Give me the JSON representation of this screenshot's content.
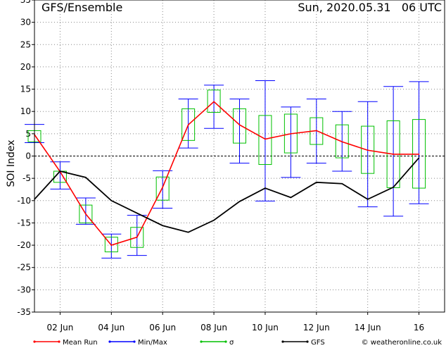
{
  "chart_data": {
    "type": "line",
    "title": "GFS/Ensemble",
    "subtitle": "Sun, 2020.05.31   06 UTC",
    "ylabel": "SOI Index",
    "xlabel": "",
    "ylim": [
      -35,
      35
    ],
    "yticks": [
      -35,
      -30,
      -25,
      -20,
      -15,
      -10,
      -5,
      0,
      5,
      10,
      15,
      20,
      25,
      30,
      35
    ],
    "ytick_labels": [
      "-35",
      "-30",
      "-25",
      "-20",
      "-15",
      "-10",
      "-5",
      "0",
      "5",
      "10",
      "15",
      "20",
      "25",
      "30",
      "35"
    ],
    "xlim": [
      1,
      17
    ],
    "xticks": [
      2,
      4,
      6,
      8,
      10,
      12,
      14,
      16
    ],
    "xtick_labels": [
      "02 Jun",
      "04 Jun",
      "06 Jun",
      "08 Jun",
      "10 Jun",
      "12 Jun",
      "14 Jun",
      "16"
    ],
    "grid": true,
    "x": [
      1,
      2,
      3,
      4,
      5,
      6,
      7,
      8,
      9,
      10,
      11,
      12,
      13,
      14,
      15,
      16
    ],
    "series": [
      {
        "name": "Mean Run",
        "color": "#ff0000",
        "values": [
          4.8,
          -3.5,
          -13,
          -20,
          -18.2,
          -7,
          7,
          12.2,
          7,
          3.8,
          5,
          5.7,
          3.2,
          1.3,
          0.4,
          0.4
        ]
      },
      {
        "name": "GFS",
        "color": "#000000",
        "values": [
          -9.7,
          -3.4,
          -4.8,
          -10,
          -12.8,
          -15.6,
          -17.1,
          -14.4,
          -10.2,
          -7.2,
          -9.3,
          -5.9,
          -6.2,
          -9.7,
          -7,
          -0.4
        ]
      }
    ],
    "minmax": {
      "name": "Min/Max",
      "color": "#0000ff",
      "min": [
        3,
        -7.4,
        -15.3,
        -22.9,
        -22.3,
        -11.7,
        1.8,
        6.2,
        -1.6,
        -10.1,
        -4.8,
        -1.6,
        -3.4,
        -11.4,
        -13.5,
        -10.7
      ],
      "max": [
        7.1,
        -1.3,
        -9.4,
        -17.5,
        -13.3,
        -3.3,
        12.8,
        15.9,
        12.8,
        16.9,
        11,
        12.8,
        10,
        12.2,
        15.6,
        16.7
      ]
    },
    "sigma": {
      "name": "σ",
      "color": "#00c000",
      "low": [
        3.2,
        -5.9,
        -15,
        -21.5,
        -20.5,
        -9.9,
        3.5,
        9.8,
        2.9,
        -1.9,
        0.7,
        2.6,
        -0.4,
        -3.9,
        -7.1,
        -7.2
      ],
      "high": [
        5.7,
        -3.4,
        -11,
        -18.2,
        -16,
        -4.7,
        10.6,
        14.8,
        10.6,
        9.1,
        9.4,
        8.6,
        7,
        6.7,
        7.9,
        8.2
      ]
    },
    "legend": {
      "placement": "bottom",
      "items": [
        {
          "label": "Mean Run",
          "color": "#ff0000",
          "style": "line"
        },
        {
          "label": "Min/Max",
          "color": "#0000ff",
          "style": "line"
        },
        {
          "label": "σ",
          "color": "#00c000",
          "style": "line"
        },
        {
          "label": "GFS",
          "color": "#000000",
          "style": "line"
        }
      ],
      "credit": "© weatheronline.co.uk"
    }
  }
}
